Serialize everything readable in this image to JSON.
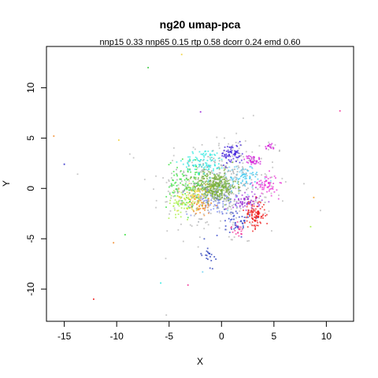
{
  "chart_data": {
    "type": "scatter",
    "title": "ng20 umap-pca",
    "subtitle": "nnp15 0.33 nnp65 0.15 rtp 0.58 dcorr 0.24 emd 0.60",
    "xlabel": "X",
    "ylabel": "Y",
    "xlim": [
      -16.7,
      12.6
    ],
    "ylim": [
      -13.2,
      14.1
    ],
    "x_ticks": [
      -15,
      -10,
      -5,
      0,
      5,
      10
    ],
    "y_ticks": [
      -10,
      -5,
      0,
      5,
      10
    ],
    "grid": false,
    "legend": "none",
    "clusters": [
      {
        "center": [
          -0.6,
          0.2
        ],
        "spread": [
          1.0,
          0.7
        ],
        "count": 320,
        "color": "#7bb03a"
      },
      {
        "center": [
          -0.6,
          0.2
        ],
        "spread": [
          1.7,
          1.4
        ],
        "count": 250,
        "color": "#9aa0a6"
      },
      {
        "center": [
          3.2,
          -2.6
        ],
        "spread": [
          0.5,
          0.7
        ],
        "count": 110,
        "color": "#ee1c1c"
      },
      {
        "center": [
          1.0,
          3.4
        ],
        "spread": [
          0.5,
          0.5
        ],
        "count": 70,
        "color": "#3b1cd8"
      },
      {
        "center": [
          3.0,
          2.8
        ],
        "spread": [
          0.4,
          0.25
        ],
        "count": 40,
        "color": "#d21ed8"
      },
      {
        "center": [
          4.6,
          4.2
        ],
        "spread": [
          0.25,
          0.15
        ],
        "count": 15,
        "color": "#d21ed8"
      },
      {
        "center": [
          4.2,
          0.4
        ],
        "spread": [
          0.6,
          0.5
        ],
        "count": 60,
        "color": "#e82fd4"
      },
      {
        "center": [
          2.5,
          -1.3
        ],
        "spread": [
          0.7,
          0.4
        ],
        "count": 60,
        "color": "#9b2cd8"
      },
      {
        "center": [
          2.4,
          1.2
        ],
        "spread": [
          0.5,
          0.4
        ],
        "count": 40,
        "color": "#3ac8f0"
      },
      {
        "center": [
          -1.6,
          2.7
        ],
        "spread": [
          1.0,
          0.6
        ],
        "count": 90,
        "color": "#2fe8e0"
      },
      {
        "center": [
          -3.2,
          0.4
        ],
        "spread": [
          1.0,
          1.2
        ],
        "count": 110,
        "color": "#33e03a"
      },
      {
        "center": [
          -2.6,
          -0.8
        ],
        "spread": [
          0.8,
          0.6
        ],
        "count": 70,
        "color": "#f2d23a"
      },
      {
        "center": [
          -0.8,
          -1.2
        ],
        "spread": [
          1.2,
          0.7
        ],
        "count": 90,
        "color": "#7b8cf0"
      },
      {
        "center": [
          1.2,
          0.9
        ],
        "spread": [
          1.2,
          0.8
        ],
        "count": 70,
        "color": "#6fd0f2"
      },
      {
        "center": [
          1.5,
          -3.2
        ],
        "spread": [
          0.6,
          0.7
        ],
        "count": 45,
        "color": "#2638c8"
      },
      {
        "center": [
          -2.0,
          -1.7
        ],
        "spread": [
          0.6,
          0.4
        ],
        "count": 40,
        "color": "#f28a2a"
      },
      {
        "center": [
          1.5,
          -4.2
        ],
        "spread": [
          0.3,
          0.3
        ],
        "count": 20,
        "color": "#f2369a"
      },
      {
        "center": [
          -1.3,
          -6.5
        ],
        "spread": [
          0.3,
          0.6
        ],
        "count": 20,
        "color": "#2338b8"
      },
      {
        "center": [
          -3.8,
          -1.5
        ],
        "spread": [
          0.7,
          0.6
        ],
        "count": 50,
        "color": "#a6f03a"
      },
      {
        "center": [
          0.0,
          0.0
        ],
        "spread": [
          3.4,
          3.0
        ],
        "count": 240,
        "color": "#b4b4b4"
      }
    ],
    "outliers": [
      {
        "x": -16.0,
        "y": 5.2,
        "color": "#f28a2a"
      },
      {
        "x": -15.0,
        "y": 2.4,
        "color": "#2a26c8"
      },
      {
        "x": -7.0,
        "y": 12.0,
        "color": "#33c83a"
      },
      {
        "x": -3.8,
        "y": 13.3,
        "color": "#f2d23a"
      },
      {
        "x": 11.3,
        "y": 7.7,
        "color": "#f2369a"
      },
      {
        "x": -12.2,
        "y": -11.0,
        "color": "#ee1c1c"
      },
      {
        "x": -10.3,
        "y": -5.4,
        "color": "#f28a2a"
      },
      {
        "x": -9.2,
        "y": -4.6,
        "color": "#33e03a"
      },
      {
        "x": -5.8,
        "y": -9.4,
        "color": "#2fe8e0"
      },
      {
        "x": -3.2,
        "y": -9.6,
        "color": "#f2369a"
      },
      {
        "x": -1.8,
        "y": -8.3,
        "color": "#6fd0f2"
      },
      {
        "x": 8.8,
        "y": -0.9,
        "color": "#f2a02a"
      },
      {
        "x": 8.5,
        "y": -3.8,
        "color": "#a6f03a"
      },
      {
        "x": -9.8,
        "y": 4.8,
        "color": "#f2d23a"
      },
      {
        "x": -2.0,
        "y": 7.6,
        "color": "#9b2cd8"
      }
    ]
  }
}
